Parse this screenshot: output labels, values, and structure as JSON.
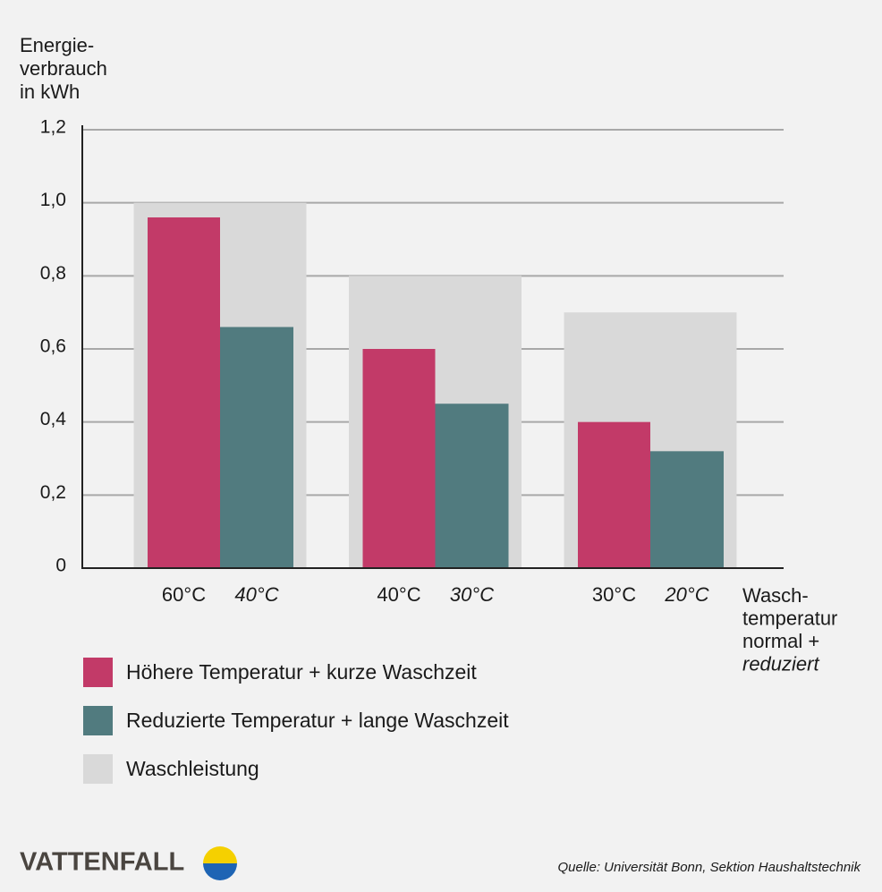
{
  "chart_data": {
    "type": "bar",
    "y_label_lines": [
      "Energie-",
      "verbrauch",
      "in kWh"
    ],
    "x_label_lines": [
      "Wasch-",
      "temperatur",
      "normal +",
      "reduziert"
    ],
    "categories_normal": [
      "60°C",
      "40°C",
      "30°C"
    ],
    "categories_reduced": [
      "40°C",
      "30°C",
      "20°C"
    ],
    "series": [
      {
        "name": "Höhere Temperatur + kurze Waschzeit",
        "color": "#c23a68",
        "values": [
          0.96,
          0.6,
          0.4
        ]
      },
      {
        "name": "Reduzierte Temperatur + lange Waschzeit",
        "color": "#517b7f",
        "values": [
          0.66,
          0.45,
          0.32
        ]
      },
      {
        "name": "Waschleistung",
        "color": "#d9d9d9",
        "values": [
          1.0,
          0.8,
          0.7
        ]
      }
    ],
    "ylim": [
      0,
      1.2
    ],
    "yticks": [
      0,
      {
        "value": 0.2,
        "label": "0,2"
      },
      {
        "value": 0.4,
        "label": "0,4"
      },
      {
        "value": 0.6,
        "label": "0,6"
      },
      {
        "value": 0.8,
        "label": "0,8"
      },
      {
        "value": 1.0,
        "label": "1,0"
      },
      {
        "value": 1.2,
        "label": "1,2"
      }
    ],
    "grid": true,
    "source": "Quelle: Universität Bonn, Sektion Haushaltstechnik",
    "brand": "VATTENFALL"
  }
}
